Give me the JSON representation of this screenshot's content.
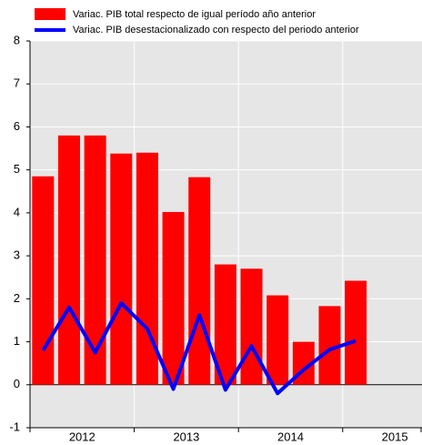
{
  "chart_data": {
    "type": "bar_line",
    "categories": [
      "2012",
      null,
      null,
      null,
      "2013",
      null,
      null,
      null,
      "2014",
      null,
      null,
      null,
      "2015"
    ],
    "series": [
      {
        "name": "Variac. PIB total respecto de igual período año anterior",
        "color": "#ff0000",
        "type": "bar",
        "values": [
          4.85,
          5.8,
          5.8,
          5.38,
          5.4,
          4.02,
          4.83,
          2.8,
          2.7,
          2.08,
          1.0,
          1.83,
          2.42
        ]
      },
      {
        "name": "Variac. PIB desestacionalizado con respecto del periodo anterior",
        "color": "#0000ff",
        "type": "line",
        "values": [
          0.8,
          1.8,
          0.75,
          1.9,
          1.3,
          -0.1,
          1.62,
          -0.12,
          0.9,
          -0.2,
          0.35,
          0.82,
          1.02
        ]
      }
    ],
    "ylim": [
      -1,
      8
    ],
    "yticks": [
      -1,
      0,
      1,
      2,
      3,
      4,
      5,
      6,
      7,
      8
    ],
    "grid": true
  }
}
